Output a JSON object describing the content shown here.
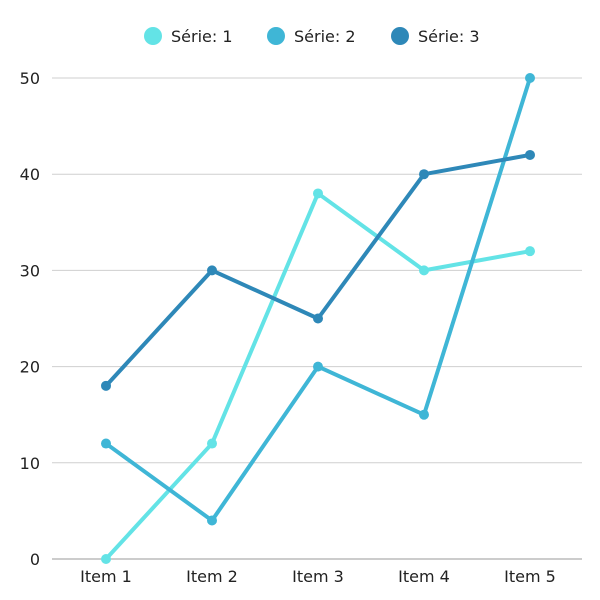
{
  "chart_data": {
    "type": "line",
    "categories": [
      "Item 1",
      "Item 2",
      "Item 3",
      "Item 4",
      "Item 5"
    ],
    "series": [
      {
        "name": "Série: 1",
        "values": [
          0,
          12,
          38,
          30,
          32
        ],
        "color": "#63e3e6"
      },
      {
        "name": "Série: 2",
        "values": [
          12,
          4,
          20,
          15,
          50
        ],
        "color": "#3fb6d6"
      },
      {
        "name": "Série: 3",
        "values": [
          18,
          30,
          25,
          40,
          42
        ],
        "color": "#2e88b8"
      }
    ],
    "ylim": [
      0,
      50
    ],
    "yticks": [
      0,
      10,
      20,
      30,
      40,
      50
    ],
    "grid": true,
    "legend": "top-center"
  }
}
